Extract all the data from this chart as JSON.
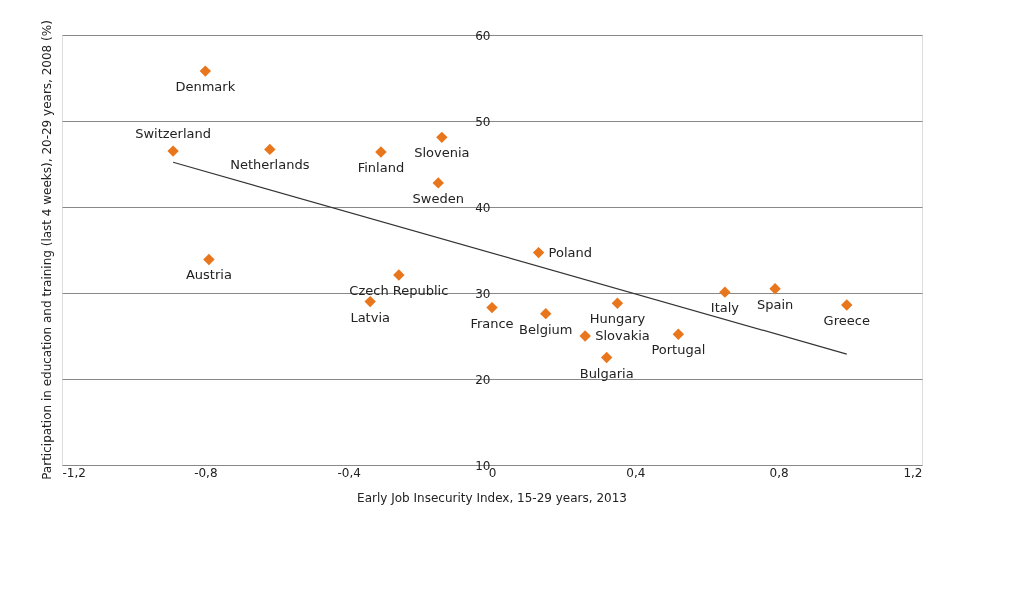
{
  "chart_data": {
    "type": "scatter",
    "xlabel": "Early Job Insecurity Index, 15-29 years, 2013",
    "ylabel": "Participation in education and training (last 4 weeks), 20-29 years, 2008 (%)",
    "grid": "y",
    "xlim": [
      -1.2,
      1.2
    ],
    "ylim": [
      10,
      60
    ],
    "xticks": [
      {
        "value": -1.2,
        "label": "-1,2"
      },
      {
        "value": -0.8,
        "label": "-0,8"
      },
      {
        "value": -0.4,
        "label": "-0,4"
      },
      0,
      {
        "value": 0.4,
        "label": "0,4"
      },
      {
        "value": 0.8,
        "label": "0,8"
      },
      {
        "value": 1.2,
        "label": "1,2"
      }
    ],
    "yticks": [
      10,
      20,
      30,
      40,
      50,
      60
    ],
    "series": [
      {
        "color": "#e8761c",
        "marker": "diamond",
        "x": [
          -0.8,
          -0.89,
          -0.62,
          -0.31,
          -0.14,
          -0.15,
          -0.79,
          -0.26,
          -0.34,
          0.13,
          0.0,
          0.15,
          0.26,
          0.32,
          0.35,
          0.52,
          0.65,
          0.79,
          0.99
        ],
        "values": [
          55.8,
          46.5,
          46.7,
          46.4,
          48.1,
          42.8,
          33.9,
          32.1,
          29.0,
          34.7,
          28.3,
          27.6,
          25.0,
          22.5,
          28.8,
          25.2,
          30.1,
          30.5,
          28.6
        ]
      },
      {
        "type": "line",
        "color": "#333333",
        "x": [
          -0.89,
          0.99
        ],
        "values": [
          45.2,
          22.9
        ]
      }
    ],
    "annotations": [
      {
        "text": "Denmark",
        "x": -0.8,
        "y": 55.8
      },
      {
        "text": "Switzerland",
        "x": -0.89,
        "y": 46.5
      },
      {
        "text": "Netherlands",
        "x": -0.62,
        "y": 46.7
      },
      {
        "text": "Finland",
        "x": -0.31,
        "y": 46.4
      },
      {
        "text": "Slovenia",
        "x": -0.14,
        "y": 48.1
      },
      {
        "text": "Sweden",
        "x": -0.15,
        "y": 42.8
      },
      {
        "text": "Austria",
        "x": -0.79,
        "y": 33.9
      },
      {
        "text": "Czech Republic",
        "x": -0.26,
        "y": 32.1
      },
      {
        "text": "Latvia",
        "x": -0.34,
        "y": 29.0
      },
      {
        "text": "Poland",
        "x": 0.13,
        "y": 34.7
      },
      {
        "text": "France",
        "x": 0.0,
        "y": 28.3
      },
      {
        "text": "Belgium",
        "x": 0.15,
        "y": 27.6
      },
      {
        "text": "Slovakia",
        "x": 0.26,
        "y": 25.0
      },
      {
        "text": "Bulgaria",
        "x": 0.32,
        "y": 22.5
      },
      {
        "text": "Hungary",
        "x": 0.35,
        "y": 28.8
      },
      {
        "text": "Portugal",
        "x": 0.52,
        "y": 25.2
      },
      {
        "text": "Italy",
        "x": 0.65,
        "y": 30.1
      },
      {
        "text": "Spain",
        "x": 0.79,
        "y": 30.5
      },
      {
        "text": "Greece",
        "x": 0.99,
        "y": 28.6
      }
    ]
  }
}
